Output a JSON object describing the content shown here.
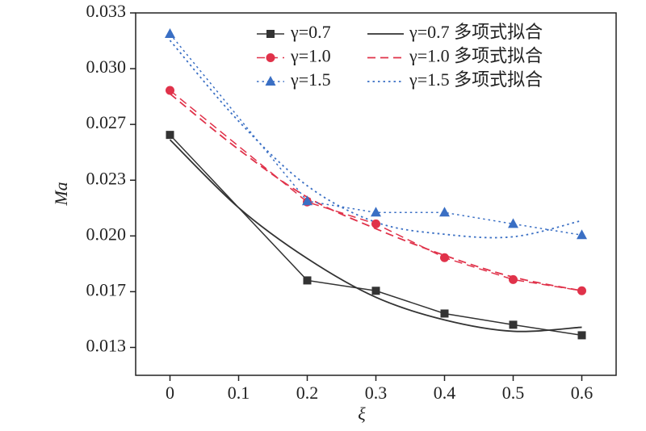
{
  "chart_data": {
    "type": "line",
    "xlabel": "ξ",
    "ylabel": "Ma",
    "xlim": [
      -0.05,
      0.65
    ],
    "xticks": [
      0,
      0.1,
      0.2,
      0.3,
      0.4,
      0.5,
      0.6
    ],
    "ylim": [
      0.011667,
      0.033333
    ],
    "yticks": [
      {
        "value": 0.013333,
        "label": "0.013"
      },
      {
        "value": 0.016667,
        "label": "0.017"
      },
      {
        "value": 0.02,
        "label": "0.020"
      },
      {
        "value": 0.023333,
        "label": "0.023"
      },
      {
        "value": 0.026667,
        "label": "0.027"
      },
      {
        "value": 0.03,
        "label": "0.030"
      },
      {
        "value": 0.033333,
        "label": "0.033"
      }
    ],
    "x": [
      0,
      0.2,
      0.3,
      0.4,
      0.5,
      0.6
    ],
    "fit_x": [
      0,
      0.1,
      0.2,
      0.3,
      0.4,
      0.5,
      0.6
    ],
    "series": [
      {
        "name": "γ=0.7",
        "color": "#333333",
        "marker": "square",
        "values": [
          0.02604,
          0.01734,
          0.01672,
          0.01536,
          0.01469,
          0.01406
        ]
      },
      {
        "name": "γ=1.0",
        "color": "#e0324a",
        "marker": "circle",
        "values": [
          0.0287,
          0.02203,
          0.02072,
          0.0187,
          0.01739,
          0.01672
        ]
      },
      {
        "name": "γ=1.5",
        "color": "#3a6fc4",
        "marker": "triangle",
        "values": [
          0.03208,
          0.02208,
          0.0214,
          0.0214,
          0.02072,
          0.02005
        ]
      }
    ],
    "fits": [
      {
        "name": "γ=0.7 多项式拟合",
        "color": "#333333",
        "dash": "solid",
        "values": [
          0.02575,
          0.02169,
          0.01865,
          0.01633,
          0.01498,
          0.0143,
          0.01454
        ]
      },
      {
        "name": "γ=1.0 多项式拟合",
        "color": "#e0324a",
        "dash": "dashed",
        "values": [
          0.0285,
          0.02517,
          0.02232,
          0.02043,
          0.01884,
          0.01754,
          0.01672
        ]
      },
      {
        "name": "γ=1.5 多项式拟合",
        "color": "#3a6fc4",
        "dash": "dotted",
        "values": [
          0.03169,
          0.02686,
          0.023,
          0.02082,
          0.0201,
          0.01995,
          0.02092
        ]
      }
    ]
  }
}
